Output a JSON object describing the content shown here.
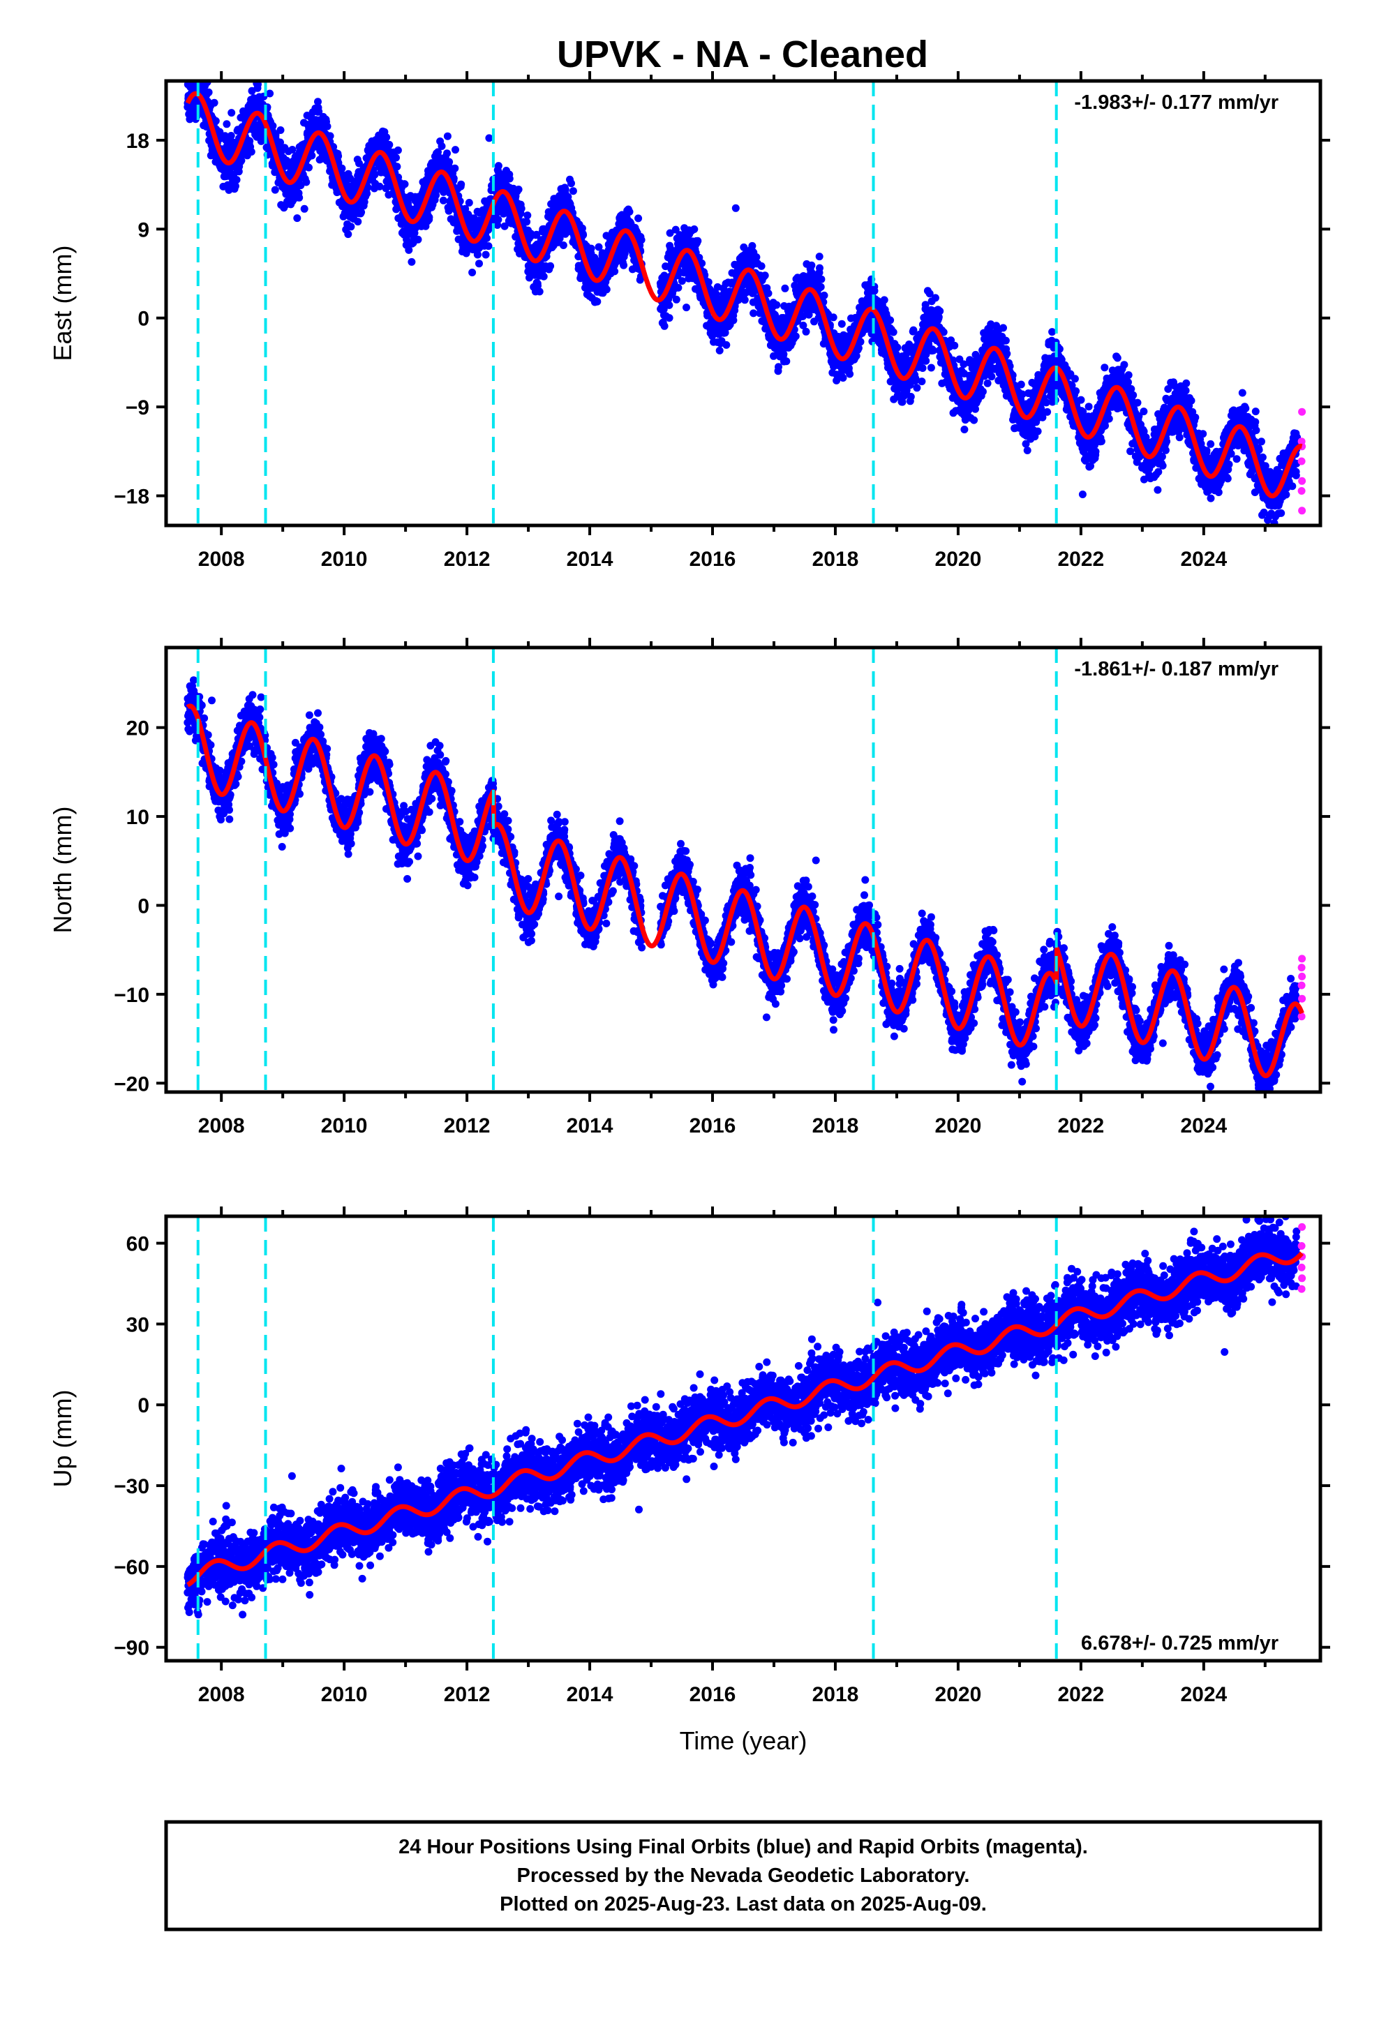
{
  "title": "UPVK  - NA - Cleaned",
  "footer": {
    "lines": [
      "24 Hour Positions Using Final Orbits (blue) and Rapid Orbits (magenta).",
      "Processed by the Nevada Geodetic Laboratory.",
      "Plotted on 2025-Aug-23. Last data on 2025-Aug-09."
    ]
  },
  "colors": {
    "final": "#0000ff",
    "rapid": "#ff22ff",
    "model": "#ff0000",
    "steps": "#00e5f0"
  },
  "chart_data": [
    {
      "type": "scatter",
      "name": "east",
      "ylabel": "East (mm)",
      "xlabel": "",
      "xlim": [
        2007.1,
        2025.9
      ],
      "ylim": [
        -21,
        24
      ],
      "yticks": [
        18,
        9,
        0,
        -9,
        -18
      ],
      "xticks": [
        2008,
        2010,
        2012,
        2014,
        2016,
        2018,
        2020,
        2022,
        2024
      ],
      "rate_text": "-1.983+/- 0.177 mm/yr",
      "rate_position": "top-right",
      "steps": [
        2007.62,
        2008.72,
        2012.43,
        2018.62,
        2021.6
      ],
      "model": {
        "start": 2007.45,
        "end": 2025.6,
        "offset": 20.0,
        "rate": -1.983,
        "amp": 3.0,
        "phase": 2008.6,
        "step_sizes": [
          0,
          0,
          0,
          0,
          0
        ]
      },
      "data_start": 2007.45,
      "data_end": 2025.6,
      "final_last": 2025.52,
      "rapid_values": [
        -9.5,
        -12.5,
        -13.0,
        -14.5,
        -16.5,
        -17.5,
        -19.5
      ]
    },
    {
      "type": "scatter",
      "name": "north",
      "ylabel": "North (mm)",
      "xlabel": "",
      "xlim": [
        2007.1,
        2025.9
      ],
      "ylim": [
        -21,
        29
      ],
      "yticks": [
        20,
        10,
        0,
        -10,
        -20
      ],
      "xticks": [
        2008,
        2010,
        2012,
        2014,
        2016,
        2018,
        2020,
        2022,
        2024
      ],
      "rate_text": "-1.861+/- 0.187 mm/yr",
      "rate_position": "top-right",
      "steps": [
        2007.62,
        2008.72,
        2012.43,
        2018.62,
        2021.6
      ],
      "model": {
        "start": 2007.45,
        "end": 2025.6,
        "offset": 18.0,
        "rate": -1.861,
        "amp": 4.5,
        "phase": 2008.5,
        "step_sizes": [
          0,
          0,
          -4.0,
          0,
          4.0
        ]
      },
      "data_start": 2007.45,
      "data_end": 2025.6,
      "final_last": 2025.52,
      "rapid_values": [
        -6.0,
        -7.0,
        -8.0,
        -9.0,
        -10.5,
        -12.5
      ]
    },
    {
      "type": "scatter",
      "name": "up",
      "ylabel": "Up (mm)",
      "xlabel": "Time (year)",
      "xlim": [
        2007.1,
        2025.9
      ],
      "ylim": [
        -95,
        70
      ],
      "yticks": [
        60,
        30,
        0,
        -30,
        -60,
        -90
      ],
      "xticks": [
        2008,
        2010,
        2012,
        2014,
        2016,
        2018,
        2020,
        2022,
        2024
      ],
      "rate_text": "6.678+/- 0.725 mm/yr",
      "rate_position": "bottom-right",
      "steps": [
        2007.62,
        2008.72,
        2012.43,
        2018.62,
        2021.6
      ],
      "model": {
        "start": 2007.45,
        "end": 2025.6,
        "offset": -64.0,
        "rate": 6.678,
        "amp": 3.0,
        "phase": 2008.9,
        "step_sizes": [
          0,
          0,
          0,
          0,
          0
        ]
      },
      "data_start": 2007.45,
      "data_end": 2025.6,
      "final_last": 2025.52,
      "rapid_values": [
        66.0,
        59.0,
        55.0,
        51.0,
        47.0,
        43.0
      ]
    }
  ]
}
